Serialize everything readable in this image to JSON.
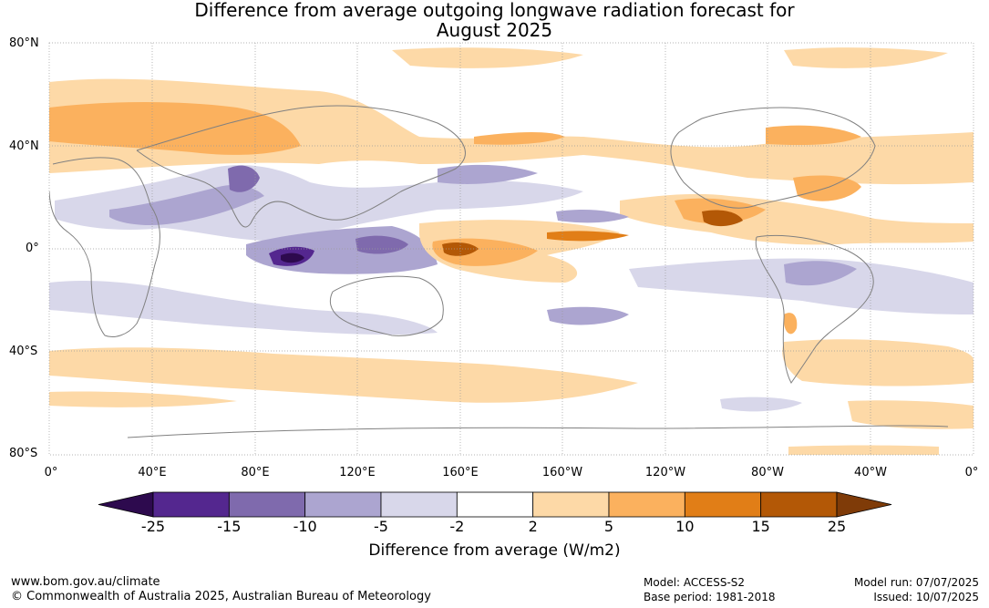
{
  "title_line1": "Difference from average outgoing longwave radiation forecast for",
  "title_line2": "August 2025",
  "lat_labels": [
    "80°N",
    "40°N",
    "0°",
    "40°S",
    "80°S"
  ],
  "lon_labels": [
    "0°",
    "40°E",
    "80°E",
    "120°E",
    "160°E",
    "160°W",
    "120°W",
    "80°W",
    "40°W",
    "0°"
  ],
  "colorbar": {
    "boundaries": [
      "-25",
      "-15",
      "-10",
      "-5",
      "-2",
      "2",
      "5",
      "10",
      "15",
      "25"
    ],
    "colors": [
      "#2d0a4e",
      "#54278f",
      "#7f6aad",
      "#aca5d0",
      "#d8d7ea",
      "#ffffff",
      "#fdd9a7",
      "#fbb15e",
      "#e17e17",
      "#b35806",
      "#7f3b08"
    ],
    "label": "Difference from average (W/m2)"
  },
  "footer": {
    "website": "www.bom.gov.au/climate",
    "copyright": "© Commonwealth of Australia 2025, Australian Bureau of Meteorology",
    "model": "Model: ACCESS-S2",
    "base_period": "Base period: 1981-2018",
    "model_run": "Model run: 07/07/2025",
    "issued": "Issued: 10/07/2025"
  }
}
